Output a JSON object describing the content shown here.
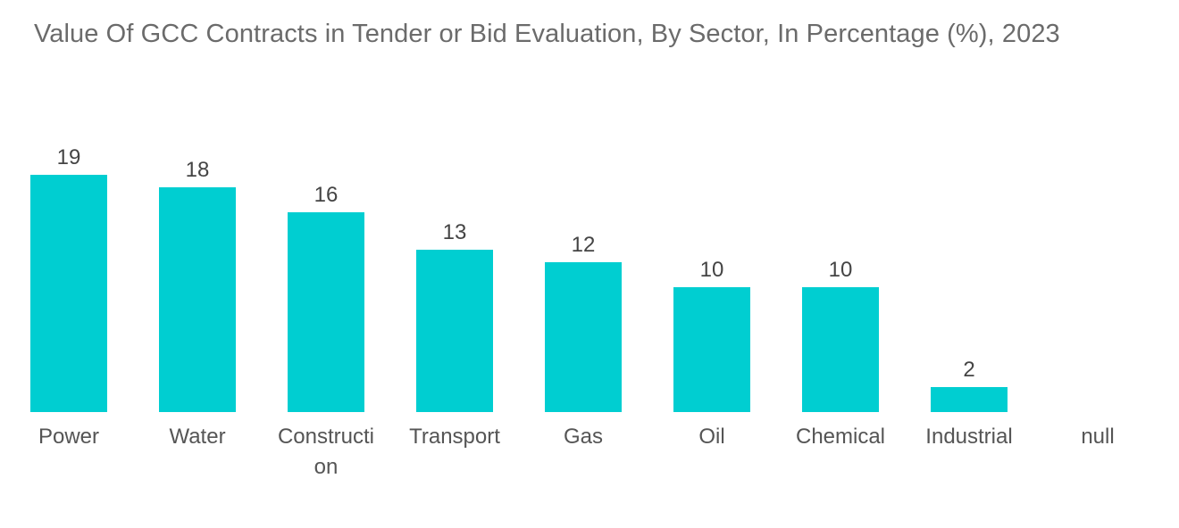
{
  "chart_data": {
    "type": "bar",
    "title": "Value Of GCC Contracts in Tender or Bid Evaluation, By Sector, In Percentage (%), 2023",
    "categories": [
      "Power",
      "Water",
      "Construction",
      "Transport",
      "Gas",
      "Oil",
      "Chemical",
      "Industrial",
      "null"
    ],
    "category_label_lines": [
      [
        "Power"
      ],
      [
        "Water"
      ],
      [
        "Constructi",
        "on"
      ],
      [
        "Transport"
      ],
      [
        "Gas"
      ],
      [
        "Oil"
      ],
      [
        "Chemical"
      ],
      [
        "Industrial"
      ],
      [
        "null"
      ]
    ],
    "values": [
      19,
      18,
      16,
      13,
      12,
      10,
      10,
      2,
      null
    ],
    "data_labels": [
      "19",
      "18",
      "16",
      "13",
      "12",
      "10",
      "10",
      "2",
      ""
    ],
    "xlabel": "",
    "ylabel": "",
    "ylim": [
      0,
      20
    ],
    "grid": false,
    "bar_color": "#00ced1"
  }
}
